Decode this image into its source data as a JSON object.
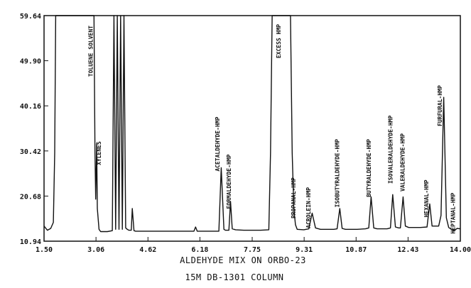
{
  "chart_data": {
    "type": "line",
    "title": "ALDEHYDE MIX ON ORBO-23",
    "subtitle": "15M DB-1301 COLUMN",
    "xlabel": "",
    "ylabel": "",
    "xlim": [
      1.5,
      14.0
    ],
    "ylim": [
      10.94,
      59.64
    ],
    "x_ticks": [
      1.5,
      3.06,
      4.62,
      6.18,
      7.75,
      9.31,
      10.87,
      12.43,
      14.0
    ],
    "x_tick_labels": [
      "1.50",
      "3.06",
      "4.62",
      "6.18",
      "7.75",
      "9.31",
      "10.87",
      "12.43",
      "14.00"
    ],
    "y_ticks": [
      10.94,
      20.68,
      30.42,
      40.16,
      49.9,
      59.64
    ],
    "y_tick_labels": [
      "10.94",
      "20.68",
      "30.42",
      "40.16",
      "49.90",
      "59.64"
    ],
    "grid": false,
    "series": [
      {
        "x": [
          1.5,
          1.6,
          1.7,
          1.78,
          1.82,
          1.85,
          2.9,
          3.0,
          3.03,
          3.05,
          3.08,
          3.1,
          3.15,
          3.2,
          3.4,
          3.55,
          3.6,
          3.65,
          3.7,
          3.75,
          3.8,
          3.85,
          3.9,
          3.95,
          4.0,
          4.05,
          4.12,
          4.15,
          4.2,
          4.25,
          4.4,
          5.5,
          6.0,
          6.05,
          6.1,
          6.5,
          6.75,
          6.82,
          6.9,
          6.95,
          7.05,
          7.1,
          7.15,
          7.25,
          7.5,
          8.0,
          8.25,
          8.3,
          8.35,
          8.9,
          8.95,
          9.0,
          9.05,
          9.1,
          9.3,
          9.45,
          9.55,
          9.65,
          9.8,
          10.2,
          10.3,
          10.38,
          10.45,
          10.55,
          10.9,
          11.15,
          11.25,
          11.32,
          11.4,
          11.5,
          11.8,
          11.9,
          11.97,
          12.05,
          12.15,
          12.2,
          12.28,
          12.35,
          12.45,
          12.8,
          13.0,
          13.08,
          13.15,
          13.35,
          13.42,
          13.5,
          13.58,
          13.65,
          13.75,
          13.82,
          13.9,
          14.0
        ],
        "y": [
          14.2,
          13.3,
          13.7,
          15.0,
          30.0,
          59.64,
          59.64,
          59.64,
          30.0,
          20.0,
          32.0,
          18.0,
          13.5,
          13.0,
          13.0,
          13.2,
          59.64,
          13.5,
          59.64,
          13.5,
          59.64,
          13.5,
          59.64,
          13.8,
          13.5,
          13.3,
          13.3,
          18.0,
          13.2,
          13.1,
          13.1,
          13.1,
          13.1,
          14.0,
          13.1,
          13.1,
          13.1,
          26.8,
          13.5,
          13.3,
          13.3,
          19.5,
          13.6,
          13.4,
          13.3,
          13.3,
          13.4,
          30.0,
          59.64,
          59.64,
          30.0,
          18.0,
          14.5,
          13.5,
          13.4,
          13.6,
          17.0,
          13.8,
          13.5,
          13.5,
          13.6,
          18.0,
          13.7,
          13.5,
          13.5,
          13.6,
          13.8,
          20.5,
          13.8,
          13.6,
          13.6,
          13.8,
          21.0,
          14.0,
          13.8,
          13.8,
          20.5,
          14.2,
          13.9,
          13.9,
          14.0,
          19.0,
          14.2,
          14.2,
          16.5,
          42.0,
          16.0,
          13.9,
          13.4,
          13.2,
          13.7,
          13.6
        ]
      }
    ],
    "annotations": [
      {
        "text": "TOLUENE SOLVENT",
        "x": 2.96,
        "y": 57.5
      },
      {
        "text": "XYLENES",
        "x": 3.21,
        "y": 32.5
      },
      {
        "text": "ACETALDEHYDE-HMP",
        "x": 6.77,
        "y": 37.8
      },
      {
        "text": "FORMALDEHYDE-HMP",
        "x": 7.11,
        "y": 29.7
      },
      {
        "text": "EXCESS HMP",
        "x": 8.6,
        "y": 57.8
      },
      {
        "text": "PROPANAL-HMP",
        "x": 9.05,
        "y": 24.7
      },
      {
        "text": "ACROLEIN-HMP",
        "x": 9.5,
        "y": 22.6
      },
      {
        "text": "ISOBUTYRALDEHYDE-HMP",
        "x": 10.36,
        "y": 33.0
      },
      {
        "text": "BUTYRALDEHYDE-HMP",
        "x": 11.31,
        "y": 33.0
      },
      {
        "text": "ISOVALERALDEHYDE-HMP",
        "x": 11.96,
        "y": 38.1
      },
      {
        "text": "VALERALDEHYDE-HMP",
        "x": 12.33,
        "y": 34.2
      },
      {
        "text": "HEXANAL-HMP",
        "x": 13.04,
        "y": 24.2
      },
      {
        "text": "FURFURAL-HMP",
        "x": 13.45,
        "y": 44.6
      },
      {
        "text": "HEPTANAL-HMP",
        "x": 13.84,
        "y": 21.4
      }
    ]
  }
}
